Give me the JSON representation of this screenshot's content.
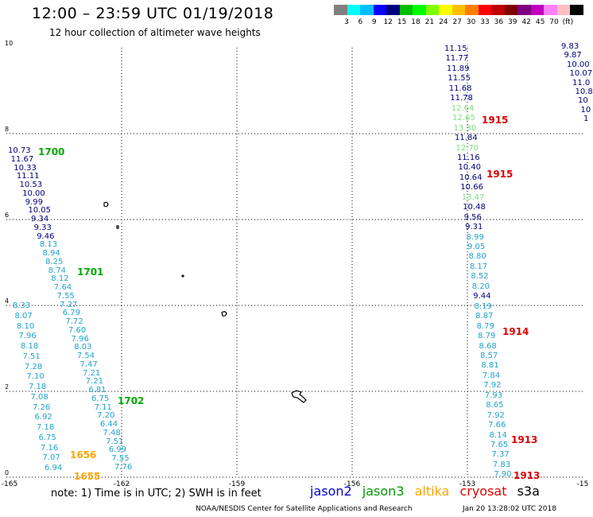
{
  "title": "12:00  –  23:59  UTC  01/19/2018",
  "subtitle": "12 hour collection of altimeter wave heights",
  "colorbar": {
    "colors": [
      "#808080",
      "#00ffff",
      "#00bfff",
      "#0000ff",
      "#00007f",
      "#00bf00",
      "#00ff00",
      "#7fff00",
      "#ffff00",
      "#ffbf00",
      "#ff7f00",
      "#ff0000",
      "#bf0000",
      "#7f0000",
      "#7f007f",
      "#bf00bf",
      "#ff7fff",
      "#ffbfbf",
      "#000000"
    ],
    "ticks": [
      "3",
      "6",
      "9",
      "12",
      "15",
      "18",
      "21",
      "24",
      "27",
      "30",
      "33",
      "36",
      "39",
      "42",
      "45",
      "70",
      "(ft)"
    ]
  },
  "axes": {
    "y_labels": [
      "10",
      "8",
      "6",
      "4",
      "2",
      "0"
    ],
    "x_labels": [
      "-165",
      "-162",
      "-159",
      "-156",
      "-153",
      "-15"
    ]
  },
  "colors": {
    "jason2": "#00007f",
    "jason3": "#00aa00",
    "altika": "#ffa500",
    "cryosat": "#dd0000",
    "s3a": "#000000",
    "light_blue": "#1fa3cc",
    "mid_blue": "#2060e0",
    "light_green": "#7ee07e"
  },
  "tracks": {
    "left_track": [
      {
        "v": "10.73",
        "c": "jason2"
      },
      {
        "v": "11.67",
        "c": "jason2"
      },
      {
        "v": "10.33",
        "c": "jason2"
      },
      {
        "v": "11.11",
        "c": "jason2"
      },
      {
        "v": "10.53",
        "c": "jason2"
      },
      {
        "v": "10.00",
        "c": "jason2"
      },
      {
        "v": "9.99",
        "c": "jason2"
      },
      {
        "v": "10.05",
        "c": "jason2"
      },
      {
        "v": "9.34",
        "c": "jason2"
      },
      {
        "v": "9.33",
        "c": "jason2"
      },
      {
        "v": "9.46",
        "c": "jason2"
      },
      {
        "v": "8.13",
        "c": "light_blue"
      },
      {
        "v": "8.94",
        "c": "light_blue"
      },
      {
        "v": "8.25",
        "c": "light_blue"
      },
      {
        "v": "8.74",
        "c": "light_blue"
      },
      {
        "v": "8.12",
        "c": "light_blue"
      },
      {
        "v": "7.64",
        "c": "light_blue"
      },
      {
        "v": "7.55",
        "c": "light_blue"
      },
      {
        "v": "7.27",
        "c": "light_blue"
      },
      {
        "v": "6.79",
        "c": "light_blue"
      },
      {
        "v": "7.72",
        "c": "light_blue"
      },
      {
        "v": "7.60",
        "c": "light_blue"
      },
      {
        "v": "7.96",
        "c": "light_blue"
      },
      {
        "v": "8.03",
        "c": "light_blue"
      },
      {
        "v": "7.54",
        "c": "light_blue"
      },
      {
        "v": "7.47",
        "c": "light_blue"
      },
      {
        "v": "7.21",
        "c": "light_blue"
      },
      {
        "v": "7.21",
        "c": "light_blue"
      },
      {
        "v": "6.81",
        "c": "light_blue"
      },
      {
        "v": "6.75",
        "c": "light_blue"
      },
      {
        "v": "7.11",
        "c": "light_blue"
      },
      {
        "v": "7.20",
        "c": "light_blue"
      },
      {
        "v": "6.44",
        "c": "light_blue"
      },
      {
        "v": "7.48",
        "c": "light_blue"
      },
      {
        "v": "7.51",
        "c": "light_blue"
      },
      {
        "v": "6.99",
        "c": "light_blue"
      },
      {
        "v": "7.55",
        "c": "light_blue"
      },
      {
        "v": "7.76",
        "c": "light_blue"
      }
    ],
    "left_track2": [
      {
        "v": "8.33",
        "c": "light_blue"
      },
      {
        "v": "8.07",
        "c": "light_blue"
      },
      {
        "v": "8.10",
        "c": "light_blue"
      },
      {
        "v": "7.96",
        "c": "light_blue"
      },
      {
        "v": "8.18",
        "c": "light_blue"
      },
      {
        "v": "7.51",
        "c": "light_blue"
      },
      {
        "v": "7.28",
        "c": "light_blue"
      },
      {
        "v": "7.10",
        "c": "light_blue"
      },
      {
        "v": "7.18",
        "c": "light_blue"
      },
      {
        "v": "7.08",
        "c": "light_blue"
      },
      {
        "v": "7.26",
        "c": "light_blue"
      },
      {
        "v": "6.92",
        "c": "light_blue"
      },
      {
        "v": "7.18",
        "c": "light_blue"
      },
      {
        "v": "6.75",
        "c": "light_blue"
      },
      {
        "v": "7.16",
        "c": "light_blue"
      },
      {
        "v": "7.07",
        "c": "light_blue"
      },
      {
        "v": "6.94",
        "c": "light_blue"
      }
    ],
    "right_track": [
      {
        "v": "11.15",
        "c": "jason2"
      },
      {
        "v": "11.77",
        "c": "jason2"
      },
      {
        "v": "11.89",
        "c": "jason2"
      },
      {
        "v": "11.55",
        "c": "jason2"
      },
      {
        "v": "11.68",
        "c": "jason2"
      },
      {
        "v": "11.78",
        "c": "jason2"
      },
      {
        "v": "12.64",
        "c": "light_green"
      },
      {
        "v": "12.65",
        "c": "light_green"
      },
      {
        "v": "13.30",
        "c": "light_green"
      },
      {
        "v": "11.84",
        "c": "jason2"
      },
      {
        "v": "12.70",
        "c": "light_green"
      },
      {
        "v": "11.16",
        "c": "jason2"
      },
      {
        "v": "10.40",
        "c": "jason2"
      },
      {
        "v": "10.64",
        "c": "jason2"
      },
      {
        "v": "10.66",
        "c": "jason2"
      },
      {
        "v": "13.47",
        "c": "light_green"
      },
      {
        "v": "10.48",
        "c": "jason2"
      },
      {
        "v": "9.56",
        "c": "jason2"
      },
      {
        "v": "9.31",
        "c": "jason2"
      },
      {
        "v": "8.99",
        "c": "light_blue"
      },
      {
        "v": "9.05",
        "c": "light_blue"
      },
      {
        "v": "8.80",
        "c": "light_blue"
      },
      {
        "v": "8.17",
        "c": "light_blue"
      },
      {
        "v": "8.52",
        "c": "light_blue"
      },
      {
        "v": "8.20",
        "c": "light_blue"
      },
      {
        "v": "9.44",
        "c": "jason2"
      },
      {
        "v": "8.19",
        "c": "light_blue"
      },
      {
        "v": "8.87",
        "c": "light_blue"
      },
      {
        "v": "8.79",
        "c": "light_blue"
      },
      {
        "v": "8.79",
        "c": "light_blue"
      },
      {
        "v": "8.68",
        "c": "light_blue"
      },
      {
        "v": "8.57",
        "c": "light_blue"
      },
      {
        "v": "8.81",
        "c": "light_blue"
      },
      {
        "v": "7.84",
        "c": "light_blue"
      },
      {
        "v": "7.92",
        "c": "light_blue"
      },
      {
        "v": "7.93",
        "c": "light_blue"
      },
      {
        "v": "8.65",
        "c": "light_blue"
      },
      {
        "v": "7.92",
        "c": "light_blue"
      },
      {
        "v": "7.66",
        "c": "light_blue"
      },
      {
        "v": "8.14",
        "c": "light_blue"
      },
      {
        "v": "7.65",
        "c": "light_blue"
      },
      {
        "v": "7.37",
        "c": "light_blue"
      },
      {
        "v": "7.83",
        "c": "light_blue"
      },
      {
        "v": "7.90",
        "c": "light_blue"
      }
    ],
    "far_right_track": [
      {
        "v": "9.83",
        "c": "jason2"
      },
      {
        "v": "9.87",
        "c": "jason2"
      },
      {
        "v": "10.00",
        "c": "jason2"
      },
      {
        "v": "10.07",
        "c": "jason2"
      },
      {
        "v": "11.0",
        "c": "jason2"
      },
      {
        "v": "10.8",
        "c": "jason2"
      },
      {
        "v": "10",
        "c": "jason2"
      },
      {
        "v": "10",
        "c": "jason2"
      },
      {
        "v": "1",
        "c": "jason2"
      }
    ]
  },
  "time_labels": [
    {
      "t": "1700",
      "c": "jason3"
    },
    {
      "t": "1701",
      "c": "jason3"
    },
    {
      "t": "1702",
      "c": "jason3"
    },
    {
      "t": "1656",
      "c": "altika"
    },
    {
      "t": "1655",
      "c": "altika"
    },
    {
      "t": "1915",
      "c": "cryosat"
    },
    {
      "t": "1915",
      "c": "cryosat"
    },
    {
      "t": "1914",
      "c": "cryosat"
    },
    {
      "t": "1913",
      "c": "cryosat"
    },
    {
      "t": "1913",
      "c": "cryosat"
    }
  ],
  "note": "note:  1) Time is in UTC;  2) SWH is in feet",
  "legend": [
    "jason2",
    "jason3",
    "altika",
    "cryosat",
    "s3a"
  ],
  "credit": "NOAA/NESDIS Center for Satellite Applications and Research",
  "timestamp": "Jan 20 13:28:02 UTC 2018"
}
